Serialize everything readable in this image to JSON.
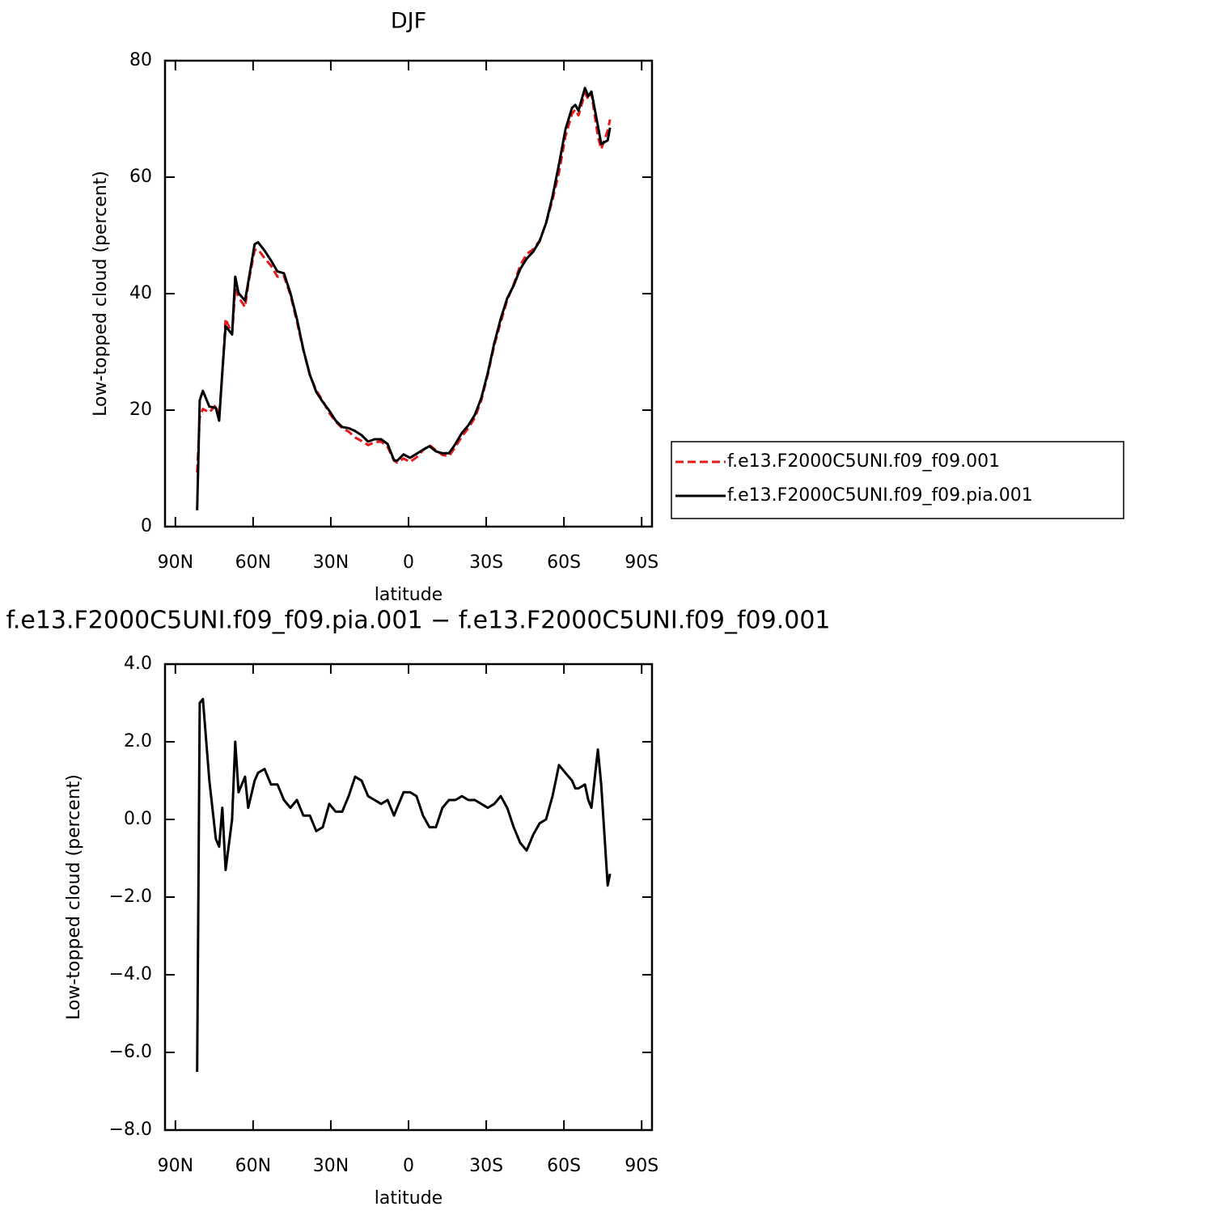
{
  "chart_data": [
    {
      "type": "line",
      "title": "DJF",
      "xlabel": "latitude",
      "ylabel": "Low-topped cloud (percent)",
      "x": [
        81.6,
        80.6,
        79.4,
        76.9,
        74.4,
        73.1,
        71.9,
        70.6,
        68.1,
        66.9,
        65.6,
        63.1,
        61.9,
        59.4,
        58.1,
        55.6,
        53.1,
        50.6,
        48.1,
        45.6,
        43.1,
        40.6,
        38.1,
        35.6,
        33.1,
        30.6,
        28.1,
        25.6,
        23.1,
        20.6,
        18.1,
        15.6,
        13.1,
        10.6,
        8.1,
        5.6,
        4.4,
        1.9,
        -0.6,
        -3.1,
        -5.6,
        -8.1,
        -10.6,
        -13.1,
        -15.6,
        -18.1,
        -20.6,
        -23.1,
        -25.6,
        -28.1,
        -30.6,
        -33.1,
        -35.6,
        -38.1,
        -40.6,
        -43.1,
        -45.6,
        -48.1,
        -50.6,
        -53.1,
        -55.6,
        -58.1,
        -60.6,
        -63.1,
        -64.4,
        -65.6,
        -68.1,
        -69.4,
        -70.6,
        -73.1,
        -74.4,
        -76.9,
        -77.8
      ],
      "series": [
        {
          "name": "f.e13.F2000C5UNI.f09_f09.001",
          "color": "#e41a1c",
          "linestyle": "dashed",
          "values": [
            9.3,
            18.7,
            20.2,
            19.6,
            20.9,
            18.9,
            26.2,
            35.7,
            33,
            40.9,
            39.4,
            37.7,
            41.6,
            47.5,
            47.6,
            46.1,
            44.8,
            42.9,
            43,
            39.8,
            35.2,
            30.3,
            26,
            23.4,
            21.6,
            19.5,
            18,
            16.9,
            16.3,
            15.3,
            14.7,
            14,
            14.5,
            14.6,
            13.7,
            11.3,
            11,
            11.7,
            11.1,
            11.9,
            13.1,
            14,
            13.1,
            12.3,
            12.1,
            13.7,
            15.5,
            16.9,
            18.7,
            21.7,
            26.1,
            31.1,
            35.1,
            38.9,
            41.6,
            44.8,
            46.8,
            47.6,
            49.1,
            52.1,
            56.1,
            60.8,
            67,
            70.9,
            71.6,
            70.6,
            74.4,
            73.4,
            74.4,
            67,
            64.8,
            68,
            69.9
          ]
        },
        {
          "name": "f.e13.F2000C5UNI.f09_f09.pia.001",
          "color": "#000000",
          "linestyle": "solid",
          "values": [
            2.8,
            21.7,
            23.3,
            20.6,
            20.4,
            18.2,
            26.5,
            34.4,
            33,
            42.9,
            40.1,
            38.8,
            41.9,
            48.5,
            48.8,
            47.4,
            45.7,
            43.8,
            43.5,
            40.1,
            35.7,
            30.4,
            26.1,
            23.1,
            21.4,
            19.9,
            18.2,
            17.1,
            16.9,
            16.4,
            15.7,
            14.6,
            15,
            15,
            14.2,
            11.4,
            11.3,
            12.4,
            11.8,
            12.5,
            13.2,
            13.8,
            12.9,
            12.6,
            12.6,
            14.2,
            16.1,
            17.4,
            19.2,
            22.1,
            26.4,
            31.5,
            35.7,
            39.2,
            41.4,
            44.2,
            46,
            47.2,
            49,
            52.1,
            56.7,
            62.2,
            68.2,
            71.9,
            72.4,
            71.4,
            75.3,
            73.9,
            74.7,
            68.8,
            65.7,
            66.3,
            68.5
          ]
        }
      ],
      "xlim": [
        94,
        -94
      ],
      "xticks": [
        {
          "value": 90,
          "label": "90N"
        },
        {
          "value": 60,
          "label": "60N"
        },
        {
          "value": 30,
          "label": "30N"
        },
        0,
        {
          "value": -30,
          "label": "30S"
        },
        {
          "value": -60,
          "label": "60S"
        },
        {
          "value": -90,
          "label": "90S"
        }
      ],
      "ylim": [
        0,
        80
      ],
      "yticks": [
        0,
        20,
        40,
        60,
        80
      ],
      "legend": "right"
    },
    {
      "type": "line",
      "title": "f.e13.F2000C5UNI.f09_f09.pia.001 − f.e13.F2000C5UNI.f09_f09.001",
      "xlabel": "latitude",
      "ylabel": "Low-topped cloud (percent)",
      "x": [
        81.6,
        80.6,
        79.4,
        76.9,
        74.4,
        73.1,
        71.9,
        70.6,
        68.1,
        66.9,
        65.6,
        63.1,
        61.9,
        59.4,
        58.1,
        55.6,
        53.1,
        50.6,
        48.1,
        45.6,
        43.1,
        40.6,
        38.1,
        35.6,
        33.1,
        30.6,
        28.1,
        25.6,
        23.1,
        20.6,
        18.1,
        15.6,
        13.1,
        10.6,
        8.1,
        5.6,
        4.4,
        1.9,
        -0.6,
        -3.1,
        -5.6,
        -8.1,
        -10.6,
        -13.1,
        -15.6,
        -18.1,
        -20.6,
        -23.1,
        -25.6,
        -28.1,
        -30.6,
        -33.1,
        -35.6,
        -38.1,
        -40.6,
        -43.1,
        -45.6,
        -48.1,
        -50.6,
        -53.1,
        -55.6,
        -58.1,
        -60.6,
        -63.1,
        -64.4,
        -65.6,
        -68.1,
        -69.4,
        -70.6,
        -73.1,
        -74.4,
        -76.9,
        -77.8
      ],
      "values": [
        -6.5,
        3.0,
        3.1,
        1.0,
        -0.5,
        -0.7,
        0.3,
        -1.3,
        0,
        2.0,
        0.7,
        1.1,
        0.3,
        1.0,
        1.2,
        1.3,
        0.9,
        0.9,
        0.5,
        0.3,
        0.5,
        0.1,
        0.1,
        -0.3,
        -0.2,
        0.4,
        0.2,
        0.2,
        0.6,
        1.1,
        1.0,
        0.6,
        0.5,
        0.4,
        0.5,
        0.1,
        0.3,
        0.7,
        0.7,
        0.6,
        0.1,
        -0.2,
        -0.2,
        0.3,
        0.5,
        0.5,
        0.6,
        0.5,
        0.5,
        0.4,
        0.3,
        0.4,
        0.6,
        0.3,
        -0.2,
        -0.6,
        -0.8,
        -0.4,
        -0.1,
        0,
        0.6,
        1.4,
        1.2,
        1.0,
        0.8,
        0.8,
        0.9,
        0.5,
        0.3,
        1.8,
        0.9,
        -1.7,
        -1.4
      ],
      "color": "#000000",
      "xlim": [
        94,
        -94
      ],
      "xticks": [
        {
          "value": 90,
          "label": "90N"
        },
        {
          "value": 60,
          "label": "60N"
        },
        {
          "value": 30,
          "label": "30N"
        },
        0,
        {
          "value": -30,
          "label": "30S"
        },
        {
          "value": -60,
          "label": "60S"
        },
        {
          "value": -90,
          "label": "90S"
        }
      ],
      "ylim": [
        -8,
        4
      ],
      "yticks": [
        {
          "value": -8,
          "label": "−8.0"
        },
        {
          "value": -6,
          "label": "−6.0"
        },
        {
          "value": -4,
          "label": "−4.0"
        },
        {
          "value": -2,
          "label": "−2.0"
        },
        {
          "value": 0,
          "label": "0.0"
        },
        {
          "value": 2,
          "label": "2.0"
        },
        {
          "value": 4,
          "label": "4.0"
        }
      ]
    }
  ]
}
